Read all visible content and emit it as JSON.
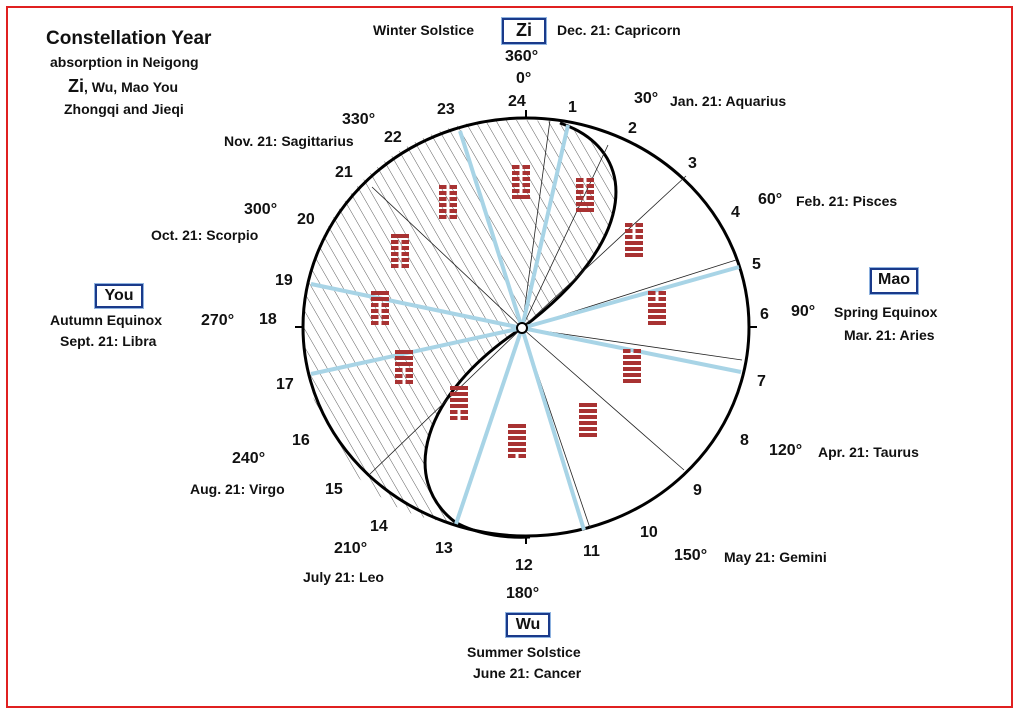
{
  "title": {
    "line1": "Constellation Year",
    "line2": "absorption in Neigong",
    "line3_zi": "Zi",
    "line3_rest": ", Wu, Mao You",
    "line4": "Zhongqi and Jieqi"
  },
  "top": {
    "left_text": "Winter Solstice",
    "box": "Zi",
    "right_text": "Dec. 21: Capricorn",
    "deg360": "360°",
    "deg0": "0°"
  },
  "right": {
    "box": "Mao",
    "deg": "90°",
    "line1": "Spring Equinox",
    "line2": "Mar. 21: Aries"
  },
  "left": {
    "box": "You",
    "deg": "270°",
    "line1": "Autumn Equinox",
    "line2": "Sept. 21: Libra"
  },
  "bottom": {
    "deg": "180°",
    "box": "Wu",
    "line1": "Summer Solstice",
    "line2": "June 21:  Cancer"
  },
  "signs": {
    "s30_deg": "30°",
    "s30_text": "Jan. 21: Aquarius",
    "s60_deg": "60°",
    "s60_text": "Feb. 21: Pisces",
    "s120_deg": "120°",
    "s120_text": "Apr. 21: Taurus",
    "s150_deg": "150°",
    "s150_text": "May 21: Gemini",
    "s210_deg": "210°",
    "s210_text": "July 21: Leo",
    "s240_deg": "240°",
    "s240_text": "Aug. 21: Virgo",
    "s300_deg": "300°",
    "s300_text": "Oct. 21: Scorpio",
    "s330_deg": "330°",
    "s330_text": "Nov. 21: Sagittarius"
  },
  "numbers": [
    "1",
    "2",
    "3",
    "4",
    "5",
    "6",
    "7",
    "8",
    "9",
    "10",
    "11",
    "12",
    "13",
    "14",
    "15",
    "16",
    "17",
    "18",
    "19",
    "20",
    "21",
    "22",
    "23",
    "24"
  ],
  "colors": {
    "frame": "#e02020",
    "spoke": "#a8d4e6",
    "hexagram": "#a83232",
    "box_border": "#1a3a8a"
  },
  "hexagrams": [
    {
      "name": "Fu",
      "lines": [
        1,
        0,
        0,
        0,
        0,
        0
      ]
    },
    {
      "name": "Lin",
      "lines": [
        1,
        1,
        0,
        0,
        0,
        0
      ]
    },
    {
      "name": "Tai",
      "lines": [
        1,
        1,
        1,
        0,
        0,
        0
      ]
    },
    {
      "name": "DaZhuang",
      "lines": [
        1,
        1,
        1,
        1,
        0,
        0
      ]
    },
    {
      "name": "Guai",
      "lines": [
        1,
        1,
        1,
        1,
        1,
        0
      ]
    },
    {
      "name": "Qian",
      "lines": [
        1,
        1,
        1,
        1,
        1,
        1
      ]
    },
    {
      "name": "Gou",
      "lines": [
        0,
        1,
        1,
        1,
        1,
        1
      ]
    },
    {
      "name": "Dun",
      "lines": [
        0,
        0,
        1,
        1,
        1,
        1
      ]
    },
    {
      "name": "Pi",
      "lines": [
        0,
        0,
        0,
        1,
        1,
        1
      ]
    },
    {
      "name": "Guan",
      "lines": [
        0,
        0,
        0,
        0,
        1,
        1
      ]
    },
    {
      "name": "Bo",
      "lines": [
        0,
        0,
        0,
        0,
        0,
        1
      ]
    },
    {
      "name": "Kun",
      "lines": [
        0,
        0,
        0,
        0,
        0,
        0
      ]
    }
  ]
}
